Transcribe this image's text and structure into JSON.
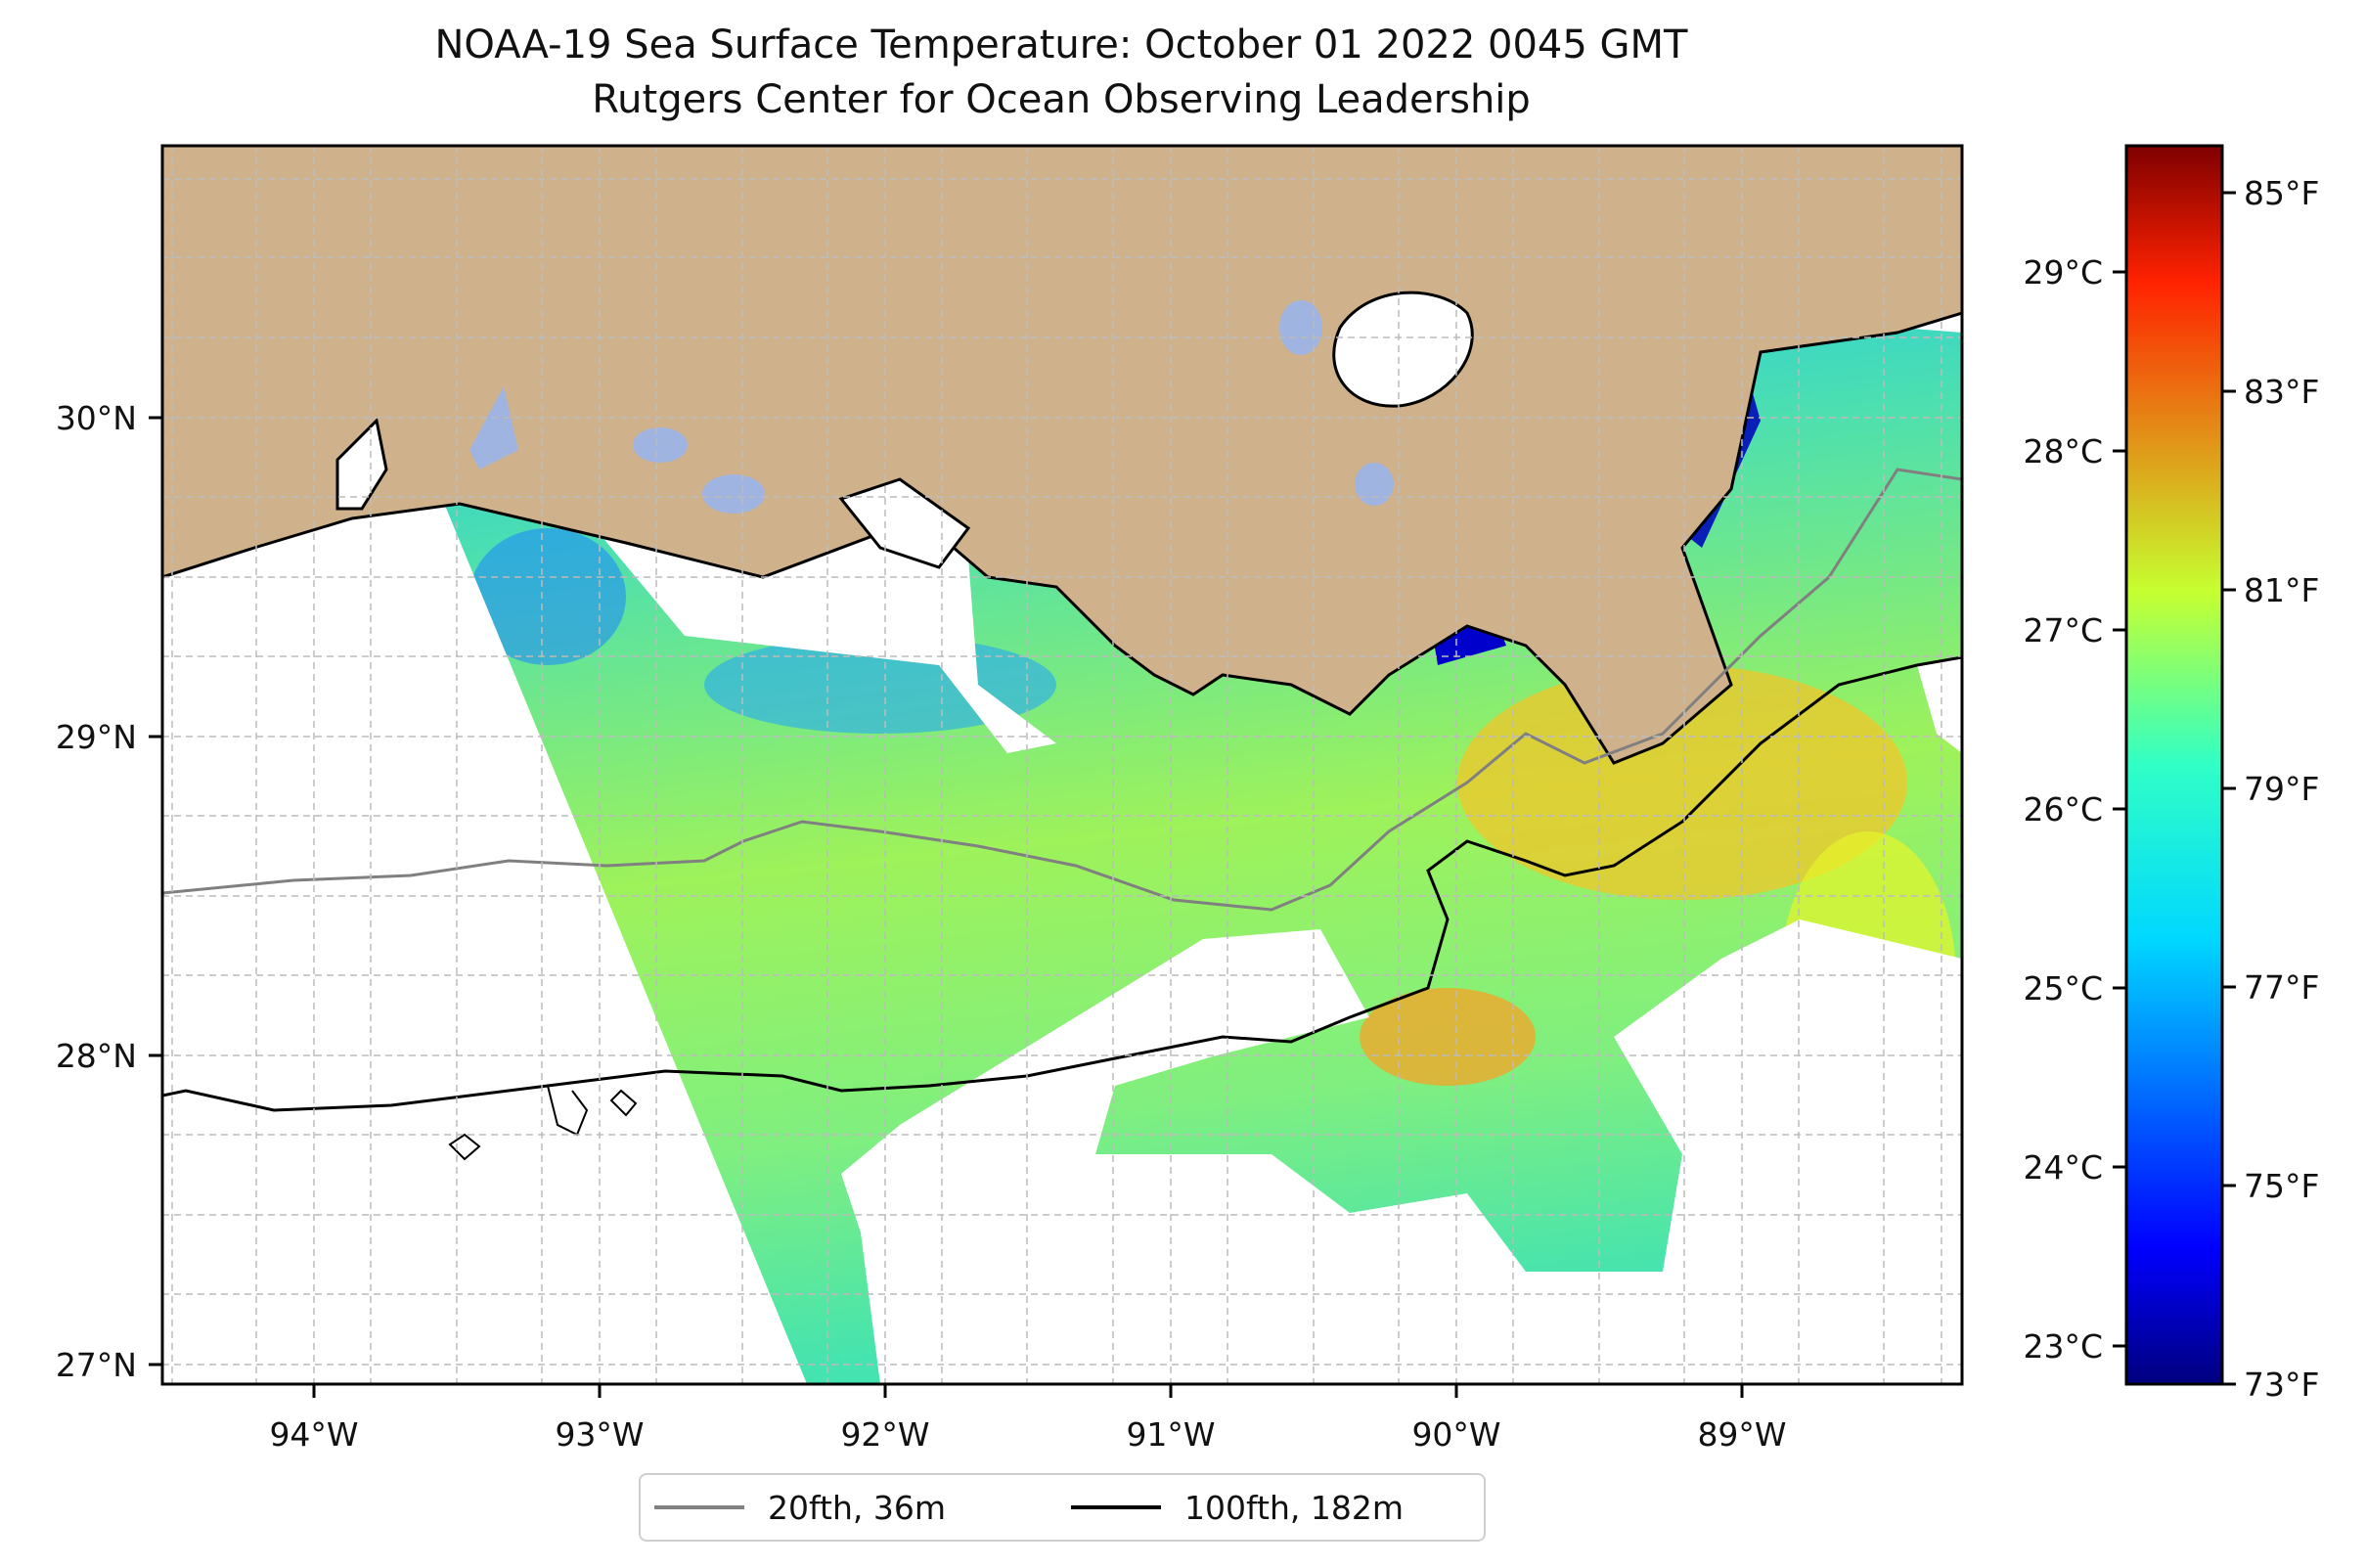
{
  "figure": {
    "title_line1": "NOAA-19 Sea Surface Temperature: October 01 2022 0045 GMT",
    "title_line2": "Rutgers Center for Ocean Observing Leadership"
  },
  "map": {
    "lon_range": [
      -94.55,
      -88.2
    ],
    "lat_range": [
      26.93,
      30.83
    ],
    "longitude_ticks": [
      "94°W",
      "93°W",
      "92°W",
      "91°W",
      "90°W",
      "89°W"
    ],
    "latitude_ticks": [
      "27°N",
      "28°N",
      "29°N",
      "30°N"
    ],
    "gridlines": true,
    "land_color": "#cfb28b",
    "lake_color": "#9fb4e0",
    "no_data_color": "#ffffff"
  },
  "colorbar": {
    "colormap": "jet",
    "celsius_ticks": [
      "23°C",
      "24°C",
      "25°C",
      "26°C",
      "27°C",
      "28°C",
      "29°C"
    ],
    "fahrenheit_ticks": [
      "73°F",
      "75°F",
      "77°F",
      "79°F",
      "81°F",
      "83°F",
      "85°F"
    ],
    "range_f": [
      73,
      86
    ]
  },
  "legend": {
    "items": [
      {
        "label": "20fth, 36m",
        "color": "#808080"
      },
      {
        "label": "100fth, 182m",
        "color": "#000000"
      }
    ],
    "placement": "bottom-center"
  }
}
